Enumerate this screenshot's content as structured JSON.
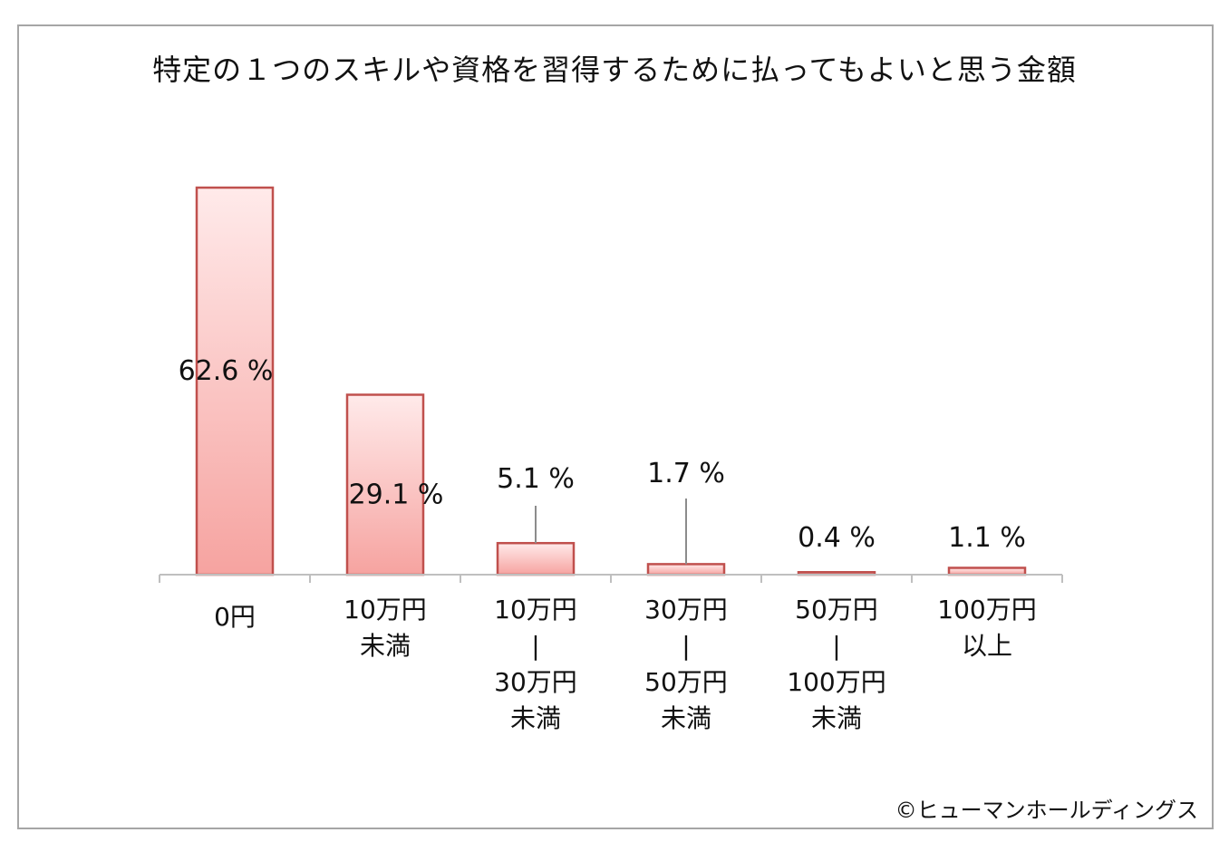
{
  "chart_data": {
    "type": "bar",
    "title": "特定の１つのスキルや資格を習得するために払ってもよいと思う金額",
    "categories": [
      [
        "0円"
      ],
      [
        "10万円",
        "未満"
      ],
      [
        "10万円",
        "|",
        "30万円",
        "未満"
      ],
      [
        "30万円",
        "|",
        "50万円",
        "未満"
      ],
      [
        "50万円",
        "|",
        "100万円",
        "未満"
      ],
      [
        "100万円",
        "以上"
      ]
    ],
    "values": [
      62.6,
      29.1,
      5.1,
      1.7,
      0.4,
      1.1
    ],
    "data_labels": [
      "62.6 %",
      "29.1 %",
      "5.1 %",
      "1.7 %",
      "0.4 %",
      "1.1 %"
    ],
    "ylim": [
      0,
      100
    ],
    "xlabel": "",
    "ylabel": "",
    "grid": false,
    "legend": "none"
  },
  "colors": {
    "bar_top": "#ffeaea",
    "bar_bottom": "#f6a3a0",
    "bar_border": "#c0504d",
    "axis": "#bfbfbf",
    "leader": "#8c8c8c"
  },
  "copyright": "©ヒューマンホールディングス"
}
